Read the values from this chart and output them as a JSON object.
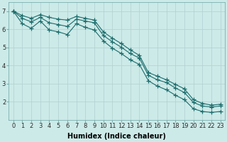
{
  "title": "",
  "xlabel": "Humidex (Indice chaleur)",
  "ylabel": "",
  "background_color": "#cceae8",
  "grid_color": "#b0d0cf",
  "line_color": "#1a6b6b",
  "x_values": [
    0,
    1,
    2,
    3,
    4,
    5,
    6,
    7,
    8,
    9,
    10,
    11,
    12,
    13,
    14,
    15,
    16,
    17,
    18,
    19,
    20,
    21,
    22,
    23
  ],
  "line1": [
    7.0,
    6.75,
    6.6,
    6.8,
    6.65,
    6.55,
    6.5,
    6.7,
    6.6,
    6.5,
    5.85,
    5.5,
    5.2,
    4.85,
    4.55,
    3.6,
    3.4,
    3.2,
    2.95,
    2.7,
    2.1,
    1.9,
    1.8,
    1.85
  ],
  "line2": [
    7.0,
    6.6,
    6.4,
    6.65,
    6.35,
    6.25,
    6.15,
    6.55,
    6.45,
    6.35,
    5.65,
    5.3,
    5.0,
    4.65,
    4.4,
    3.45,
    3.2,
    3.05,
    2.75,
    2.5,
    1.95,
    1.75,
    1.7,
    1.75
  ],
  "line3": [
    7.0,
    6.3,
    6.05,
    6.45,
    5.95,
    5.85,
    5.7,
    6.3,
    6.1,
    5.95,
    5.35,
    4.95,
    4.65,
    4.3,
    4.05,
    3.15,
    2.85,
    2.65,
    2.35,
    2.1,
    1.6,
    1.45,
    1.4,
    1.45
  ],
  "ylim": [
    1.0,
    7.5
  ],
  "xlim": [
    -0.5,
    23.5
  ],
  "yticks": [
    2,
    3,
    4,
    5,
    6,
    7
  ],
  "xticks": [
    0,
    1,
    2,
    3,
    4,
    5,
    6,
    7,
    8,
    9,
    10,
    11,
    12,
    13,
    14,
    15,
    16,
    17,
    18,
    19,
    20,
    21,
    22,
    23
  ],
  "marker": "+",
  "markersize": 4,
  "linewidth": 0.8,
  "fontsize_axis": 6,
  "fontsize_xlabel": 7
}
